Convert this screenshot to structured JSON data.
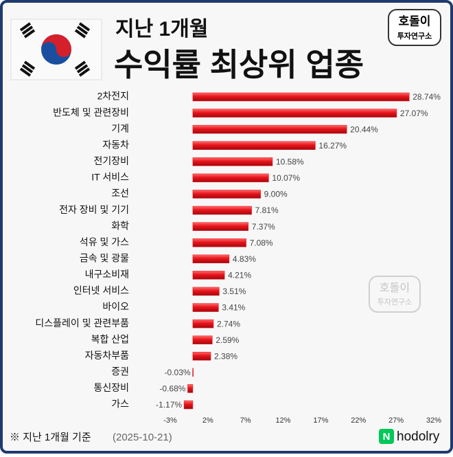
{
  "chart_data": {
    "type": "bar",
    "orientation": "horizontal",
    "title": "지난 1개월",
    "subtitle": "수익률 최상위 업종",
    "categories": [
      "2차전지",
      "반도체 및 관련장비",
      "기계",
      "자동차",
      "전기장비",
      "IT 서비스",
      "조선",
      "전자 장비 및 기기",
      "화학",
      "석유 및 가스",
      "금속 및 광물",
      "내구소비재",
      "인터넷 서비스",
      "바이오",
      "디스플레이 및 관련부품",
      "복합 산업",
      "자동차부품",
      "증권",
      "통신장비",
      "가스"
    ],
    "values": [
      28.74,
      27.07,
      20.44,
      16.27,
      10.58,
      10.07,
      9.0,
      7.81,
      7.37,
      7.08,
      4.83,
      4.21,
      3.51,
      3.41,
      2.74,
      2.59,
      2.38,
      -0.03,
      -0.68,
      -1.17
    ],
    "value_labels": [
      "28.74%",
      "27.07%",
      "20.44%",
      "16.27%",
      "10.58%",
      "10.07%",
      "9.00%",
      "7.81%",
      "7.37%",
      "7.08%",
      "4.83%",
      "4.21%",
      "3.51%",
      "3.41%",
      "2.74%",
      "2.59%",
      "2.38%",
      "-0.03%",
      "-0.68%",
      "-1.17%"
    ],
    "color": "#e8141b",
    "xlim": [
      -3,
      32
    ],
    "xticks": [
      {
        "value": -3,
        "label": "-3%"
      },
      {
        "value": 2,
        "label": "2%"
      },
      {
        "value": 7,
        "label": "7%"
      },
      {
        "value": 12,
        "label": "12%"
      },
      {
        "value": 17,
        "label": "17%"
      },
      {
        "value": 22,
        "label": "22%"
      },
      {
        "value": 27,
        "label": "27%"
      },
      {
        "value": 32,
        "label": "32%"
      }
    ],
    "grid": false
  },
  "logo": {
    "line1": "호돌이",
    "line2": "투자연구소"
  },
  "watermark": {
    "line1": "호돌이",
    "line2": "투자연구소"
  },
  "footer": {
    "note": "※ 지난 1개월 기준",
    "date": "(2025-10-21)",
    "brand_mark": "N",
    "brand": "hodolry"
  }
}
